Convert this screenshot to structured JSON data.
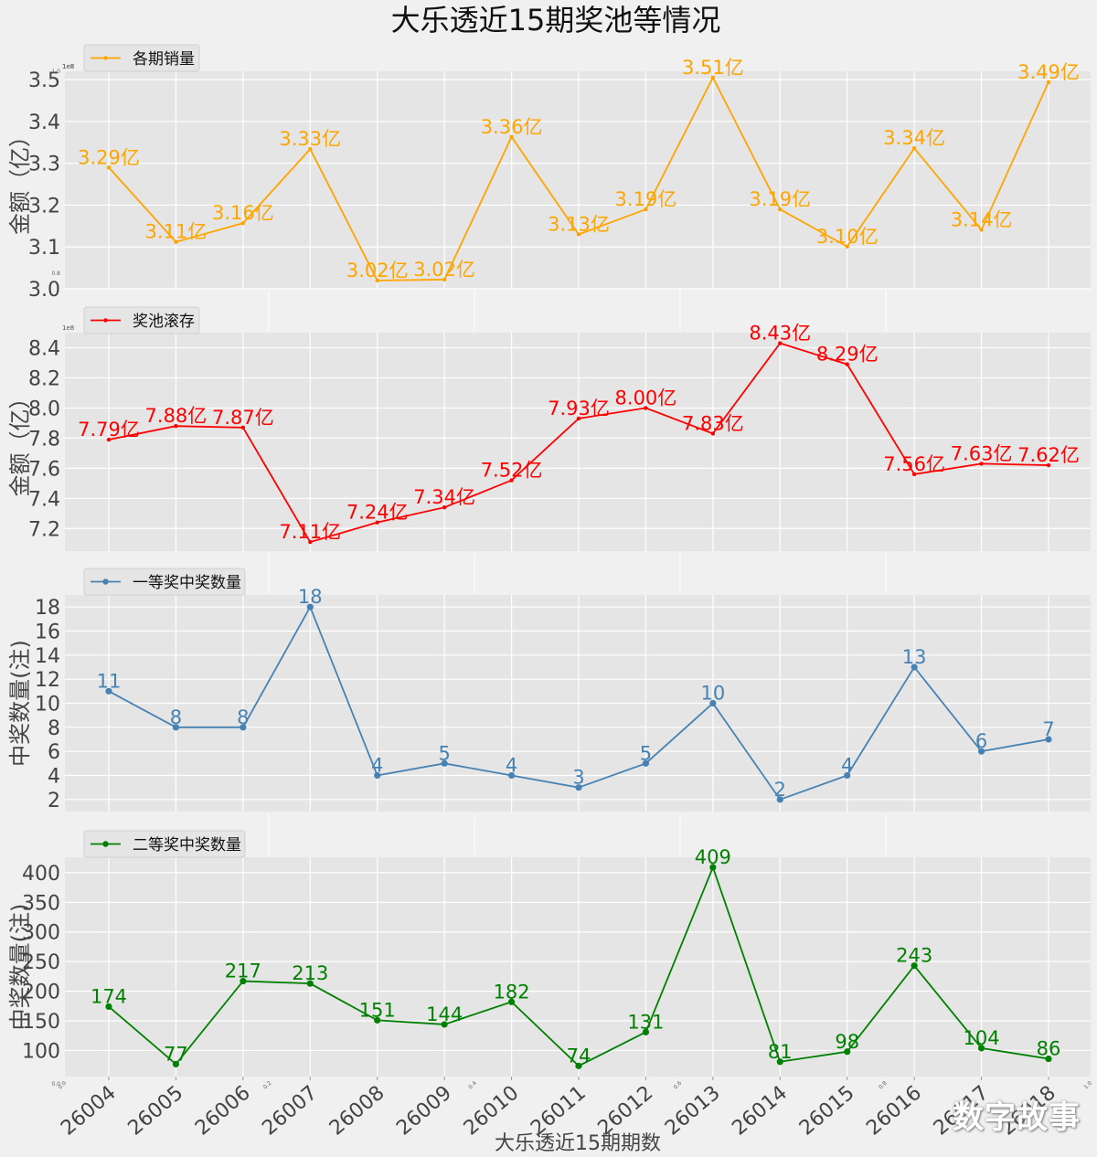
{
  "title": "大乐透近15期奖池等情况",
  "xlabel": "大乐透近15期期数",
  "watermark": "数字故事",
  "colors": {
    "background": "#f0f0f0",
    "panel": "#e5e5e5",
    "grid": "#ffffff",
    "axis_text": "#444444"
  },
  "chart_data": [
    {
      "type": "line",
      "name": "sales",
      "legend": "各期销量",
      "color": "#ffa500",
      "marker": "small",
      "ylabel": "金额（亿）",
      "offset_text": "1e8",
      "ylim": [
        3.0,
        3.52
      ],
      "yticks": [
        3.0,
        3.1,
        3.2,
        3.3,
        3.4,
        3.5
      ],
      "ytick_labels": [
        "3.0",
        "3.1",
        "3.2",
        "3.3",
        "3.4",
        "3.5"
      ],
      "x": [
        "26004",
        "26005",
        "26006",
        "26007",
        "26008",
        "26009",
        "26010",
        "26011",
        "26012",
        "26013",
        "26014",
        "26015",
        "26016",
        "26017",
        "26018"
      ],
      "values": [
        3.29,
        3.11,
        3.16,
        3.33,
        3.02,
        3.02,
        3.36,
        3.13,
        3.19,
        3.51,
        3.19,
        3.1,
        3.34,
        3.14,
        3.49
      ],
      "value_y": [
        3.29,
        3.112,
        3.157,
        3.334,
        3.02,
        3.022,
        3.363,
        3.13,
        3.19,
        3.505,
        3.19,
        3.101,
        3.336,
        3.141,
        3.494
      ],
      "labels": [
        "3.29亿",
        "3.11亿",
        "3.16亿",
        "3.33亿",
        "3.02亿",
        "3.02亿",
        "3.36亿",
        "3.13亿",
        "3.19亿",
        "3.51亿",
        "3.19亿",
        "3.10亿",
        "3.34亿",
        "3.14亿",
        "3.49亿"
      ]
    },
    {
      "type": "line",
      "name": "pool",
      "legend": "奖池滚存",
      "color": "#ff0000",
      "marker": "small",
      "ylabel": "金额（亿）",
      "offset_text": "1e8",
      "ylim": [
        7.05,
        8.5
      ],
      "yticks": [
        7.2,
        7.4,
        7.6,
        7.8,
        8.0,
        8.2,
        8.4
      ],
      "ytick_labels": [
        "7.2",
        "7.4",
        "7.6",
        "7.8",
        "8.0",
        "8.2",
        "8.4"
      ],
      "x": [
        "26004",
        "26005",
        "26006",
        "26007",
        "26008",
        "26009",
        "26010",
        "26011",
        "26012",
        "26013",
        "26014",
        "26015",
        "26016",
        "26017",
        "26018"
      ],
      "values": [
        7.79,
        7.88,
        7.87,
        7.11,
        7.24,
        7.34,
        7.52,
        7.93,
        8.0,
        7.83,
        8.43,
        8.29,
        7.56,
        7.63,
        7.62
      ],
      "labels": [
        "7.79亿",
        "7.88亿",
        "7.87亿",
        "7.11亿",
        "7.24亿",
        "7.34亿",
        "7.52亿",
        "7.93亿",
        "8.00亿",
        "7.83亿",
        "8.43亿",
        "8.29亿",
        "7.56亿",
        "7.63亿",
        "7.62亿"
      ]
    },
    {
      "type": "line",
      "name": "first_prize",
      "legend": "一等奖中奖数量",
      "color": "#4682b4",
      "marker": "circle",
      "ylabel": "中奖数量(注)",
      "ylim": [
        1,
        19
      ],
      "yticks": [
        2,
        4,
        6,
        8,
        10,
        12,
        14,
        16,
        18
      ],
      "ytick_labels": [
        "2",
        "4",
        "6",
        "8",
        "10",
        "12",
        "14",
        "16",
        "18"
      ],
      "x": [
        "26004",
        "26005",
        "26006",
        "26007",
        "26008",
        "26009",
        "26010",
        "26011",
        "26012",
        "26013",
        "26014",
        "26015",
        "26016",
        "26017",
        "26018"
      ],
      "values": [
        11,
        8,
        8,
        18,
        4,
        5,
        4,
        3,
        5,
        10,
        2,
        4,
        13,
        6,
        7
      ],
      "labels": [
        "11",
        "8",
        "8",
        "18",
        "4",
        "5",
        "4",
        "3",
        "5",
        "10",
        "2",
        "4",
        "13",
        "6",
        "7"
      ]
    },
    {
      "type": "line",
      "name": "second_prize",
      "legend": "二等奖中奖数量",
      "color": "#008000",
      "marker": "circle",
      "ylabel": "中奖数量(注)",
      "ylim": [
        56,
        426
      ],
      "yticks": [
        100,
        150,
        200,
        250,
        300,
        350,
        400
      ],
      "ytick_labels": [
        "100",
        "150",
        "200",
        "250",
        "300",
        "350",
        "400"
      ],
      "x": [
        "26004",
        "26005",
        "26006",
        "26007",
        "26008",
        "26009",
        "26010",
        "26011",
        "26012",
        "26013",
        "26014",
        "26015",
        "26016",
        "26017",
        "26018"
      ],
      "values": [
        174,
        77,
        217,
        213,
        151,
        144,
        182,
        74,
        131,
        409,
        81,
        98,
        243,
        104,
        86
      ],
      "labels": [
        "174",
        "77",
        "217",
        "213",
        "151",
        "144",
        "182",
        "74",
        "131",
        "409",
        "81",
        "98",
        "243",
        "104",
        "86"
      ]
    }
  ],
  "background_axes": {
    "top_offset_label": "1e8",
    "yticks": [
      "0.0",
      "0.8",
      "1.0"
    ],
    "xticks": [
      "0.0",
      "0.2",
      "0.4",
      "0.6",
      "0.8",
      "1.0"
    ]
  }
}
